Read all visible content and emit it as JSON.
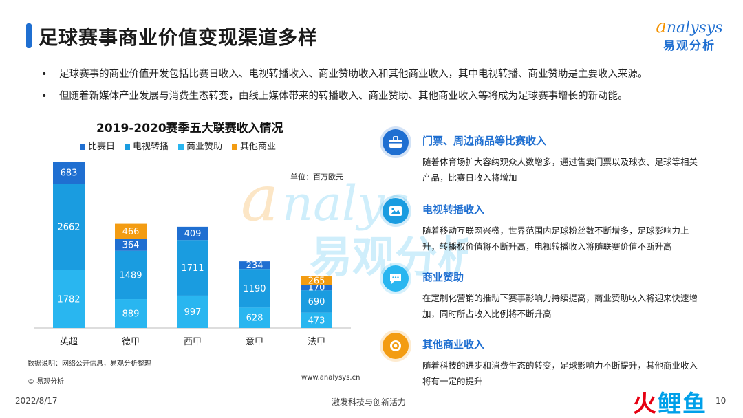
{
  "header": {
    "title": "足球赛事商业价值变现渠道多样"
  },
  "logo": {
    "brand_en_first": "a",
    "brand_en_rest": "nalysys",
    "brand_cn": "易观分析"
  },
  "bullets": [
    "足球赛事的商业价值开发包括比赛日收入、电视转播收入、商业赞助收入和其他商业收入，其中电视转播、商业赞助是主要收入来源。",
    "但随着新媒体产业发展与消费生态转变，由线上媒体带来的转播收入、商业赞助、其他商业收入等将成为足球赛事增长的新动能。"
  ],
  "chart_data": {
    "type": "bar",
    "stacked": true,
    "title": "2019-2020赛季五大联赛收入情况",
    "unit_label": "单位：百万欧元",
    "categories": [
      "英超",
      "德甲",
      "西甲",
      "意甲",
      "法甲"
    ],
    "series": [
      {
        "name": "比赛日",
        "color": "#1f6fd1",
        "values": [
          683,
          364,
          409,
          234,
          170
        ]
      },
      {
        "name": "电视转播",
        "color": "#1a9ce0",
        "values": [
          2662,
          1489,
          1711,
          1190,
          690
        ]
      },
      {
        "name": "商业赞助",
        "color": "#29b6f0",
        "values": [
          1782,
          889,
          997,
          628,
          473
        ]
      },
      {
        "name": "其他商业",
        "color": "#f39c12",
        "values": [
          null,
          466,
          null,
          null,
          265
        ]
      }
    ],
    "stack_order_bottom_to_top": [
      "商业赞助",
      "电视转播",
      "比赛日",
      "其他商业"
    ],
    "grid": false,
    "legend_position": "top"
  },
  "chart_notes": {
    "source": "数据说明：网络公开信息，易观分析整理",
    "copyright": "© 易观分析",
    "website": "www.analysys.cn"
  },
  "cards": [
    {
      "icon": "ticket-icon",
      "color": "#1f6fd1",
      "heading": "门票、周边商品等比赛收入",
      "desc": "随着体育场扩大容纳观众人数增多，通过售卖门票以及球衣、足球等相关产品，比赛日收入将增加"
    },
    {
      "icon": "image-icon",
      "color": "#1a9ce0",
      "heading": "电视转播收入",
      "desc": "随着移动互联网兴盛，世界范围内足球粉丝数不断增多，足球影响力上升，转播权价值将不断升高，电视转播收入将随联赛价值不断升高"
    },
    {
      "icon": "chat-icon",
      "color": "#29b6f0",
      "heading": "商业赞助",
      "desc": "在定制化营销的推动下赛事影响力持续提高，商业赞助收入将迎来快速增加，同时所占收入比例将不断升高"
    },
    {
      "icon": "target-icon",
      "color": "#f39c12",
      "heading": "其他商业收入",
      "desc": "随着科技的进步和消费生态的转变，足球影响力不断提升，其他商业收入将有一定的提升"
    }
  ],
  "footer": {
    "date": "2022/8/17",
    "slogan": "激发科技与创新活力",
    "page": "10",
    "brand_mark_1": "火",
    "brand_mark_2": "鲤",
    "brand_mark_3": "鱼"
  }
}
